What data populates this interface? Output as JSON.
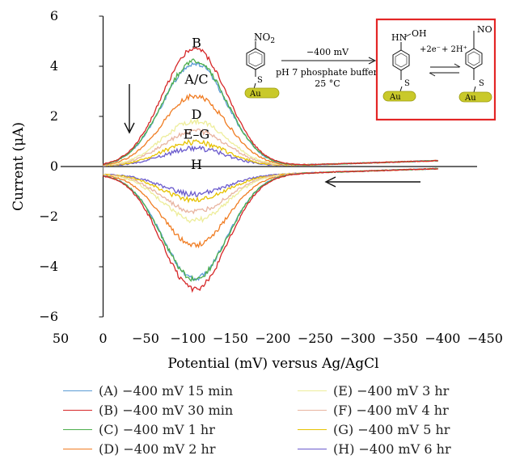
{
  "chart_data": {
    "type": "line",
    "xlabel": "Potential (mV) versus Ag/AgCl",
    "ylabel": "Current (μA)",
    "xlim": [
      50,
      -450
    ],
    "ylim": [
      -6,
      6
    ],
    "x_ticks": [
      "50",
      "0",
      "−50",
      "−100",
      "−150",
      "−200",
      "−250",
      "−300",
      "−350",
      "−400",
      "−450"
    ],
    "y_ticks": [
      "−6",
      "−4",
      "−2",
      "0",
      "2",
      "4",
      "6"
    ],
    "peak_potential_mV": -108,
    "series": [
      {
        "name": "(A) −400 mV 15 min",
        "color": "#5b9bd5",
        "ox_peak": 4.1,
        "red_peak": -4.15
      },
      {
        "name": "(B) −400 mV 30 min",
        "color": "#d62728",
        "ox_peak": 4.7,
        "red_peak": -4.6
      },
      {
        "name": "(C) −400 mV 1 hr",
        "color": "#4cae4c",
        "ox_peak": 4.2,
        "red_peak": -4.2
      },
      {
        "name": "(D) −400 mV 2 hr",
        "color": "#f07c22",
        "ox_peak": 2.8,
        "red_peak": -2.85
      },
      {
        "name": "(E) −400 mV 3 hr",
        "color": "#eded9a",
        "ox_peak": 1.8,
        "red_peak": -1.85
      },
      {
        "name": "(F) −400 mV 4 hr",
        "color": "#e8b4a0",
        "ox_peak": 1.4,
        "red_peak": -1.5
      },
      {
        "name": "(G) −400 mV 5 hr",
        "color": "#e6c200",
        "ox_peak": 0.95,
        "red_peak": -1.05
      },
      {
        "name": "(H) −400 mV 6 hr",
        "color": "#6a5acd",
        "ox_peak": 0.7,
        "red_peak": -0.8
      }
    ],
    "annotations": {
      "B": "B",
      "AC": "A/C",
      "D": "D",
      "EG": "E–G",
      "H": "H"
    }
  },
  "inset": {
    "no2": "NO",
    "no2_sub": "2",
    "potential": "−400 mV",
    "buffer": "pH 7 phosphate buffer",
    "temp": "25 °C",
    "hn": "HN",
    "oh": "OH",
    "electrons": "+2e⁻",
    "protons": "+ 2H⁺",
    "no": "NO",
    "s": "S",
    "au": "Au"
  }
}
